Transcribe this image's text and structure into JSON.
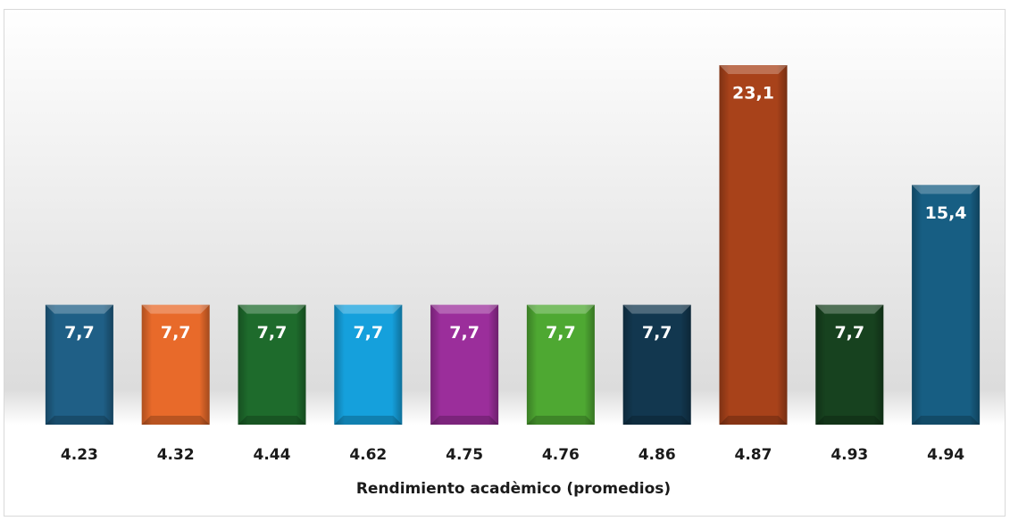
{
  "chart_data": {
    "type": "bar",
    "categories": [
      "4.23",
      "4.32",
      "4.44",
      "4.62",
      "4.75",
      "4.76",
      "4.86",
      "4.87",
      "4.93",
      "4.94"
    ],
    "values": [
      7.7,
      7.7,
      7.7,
      7.7,
      7.7,
      7.7,
      7.7,
      23.1,
      7.7,
      15.4
    ],
    "value_labels": [
      "7,7",
      "7,7",
      "7,7",
      "7,7",
      "7,7",
      "7,7",
      "7,7",
      "23,1",
      "7,7",
      "15,4"
    ],
    "colors": [
      "#1f5f86",
      "#e86a2a",
      "#1e6b2c",
      "#15a0dc",
      "#9b2e9b",
      "#4ea832",
      "#12374f",
      "#a8421a",
      "#17421f",
      "#175e83"
    ],
    "x_label": "Rendimiento acadèmico (promedios)"
  }
}
